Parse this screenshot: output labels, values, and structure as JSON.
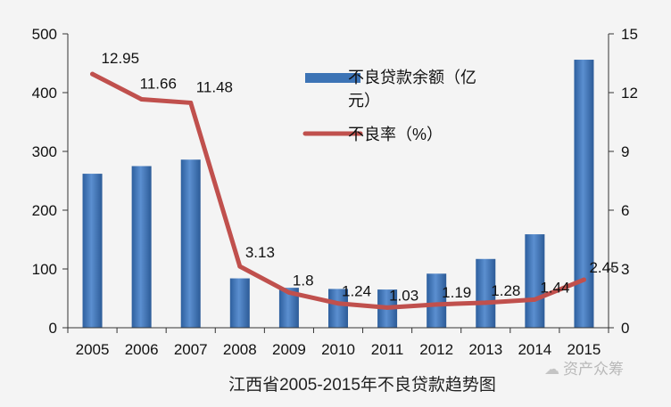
{
  "chart_data": {
    "type": "bar+line",
    "title": "江西省2005-2015年不良贷款趋势图",
    "categories": [
      "2005",
      "2006",
      "2007",
      "2008",
      "2009",
      "2010",
      "2011",
      "2012",
      "2013",
      "2014",
      "2015"
    ],
    "series": [
      {
        "name": "不良贷款余额（亿元）",
        "type": "bar",
        "axis": "left",
        "values": [
          262,
          275,
          286,
          84,
          68,
          66,
          65,
          92,
          117,
          159,
          456
        ]
      },
      {
        "name": "不良率（%）",
        "type": "line",
        "axis": "right",
        "values": [
          12.95,
          11.66,
          11.48,
          3.13,
          1.8,
          1.24,
          1.03,
          1.19,
          1.28,
          1.44,
          2.45
        ],
        "data_labels": [
          "12.95",
          "11.66",
          "11.48",
          "3.13",
          "1.8",
          "1.24",
          "1.03",
          "1.19",
          "1.28",
          "1.44",
          "2.45"
        ]
      }
    ],
    "y_left": {
      "min": 0,
      "max": 500,
      "ticks": [
        "0",
        "100",
        "200",
        "300",
        "400",
        "500"
      ]
    },
    "y_right": {
      "min": 0,
      "max": 15,
      "ticks": [
        "0",
        "3",
        "6",
        "9",
        "12",
        "15"
      ]
    },
    "legend_position": "top-center",
    "grid": false,
    "colors": {
      "bar": "#3c73b5",
      "line": "#c0504d"
    }
  },
  "watermark": {
    "text": "资产众筹",
    "icon": "chat-bubble-icon"
  }
}
